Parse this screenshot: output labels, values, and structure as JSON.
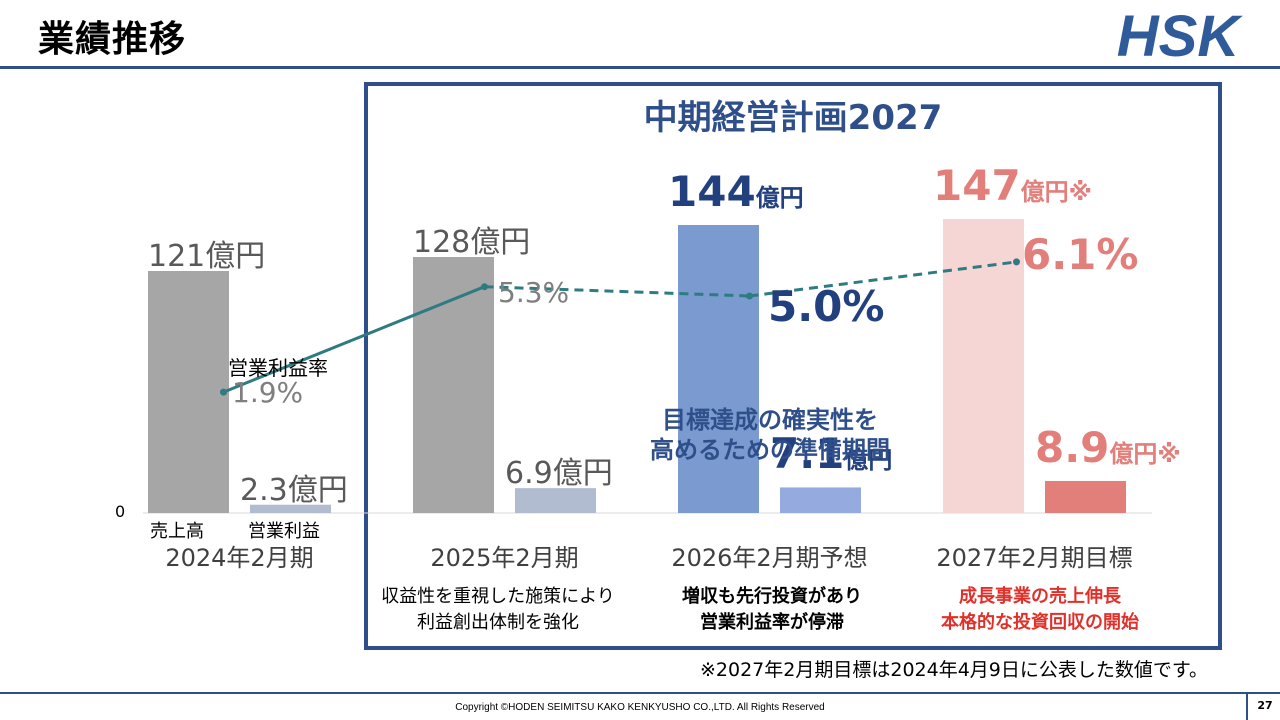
{
  "header": {
    "title": "業績推移",
    "logo_text": "HSK"
  },
  "plan_title": "中期経営計画2027",
  "chart_data": {
    "type": "bar",
    "categories": [
      "2024年2月期",
      "2025年2月期",
      "2026年2月期予想",
      "2027年2月期目標"
    ],
    "series": [
      {
        "name": "売上高",
        "values": [
          121,
          128,
          144,
          147
        ],
        "labels": [
          "121億円",
          "128億円",
          "144億円",
          "147億円※"
        ]
      },
      {
        "name": "営業利益",
        "values": [
          2.3,
          6.9,
          7.1,
          8.9
        ],
        "labels": [
          "2.3億円",
          "6.9億円",
          "7.1億円",
          "8.9億円※"
        ]
      }
    ],
    "line_series": {
      "name": "営業利益率",
      "values": [
        1.9,
        5.3,
        5.0,
        6.1
      ],
      "labels": [
        "1.9%",
        "5.3%",
        "5.0%",
        "6.1%"
      ]
    },
    "y_tick": "0",
    "colors": {
      "sales": [
        "#a6a6a6",
        "#a6a6a6",
        "#7a9ad0",
        "#f6d5d5"
      ],
      "profit": [
        "#b1bcd1",
        "#b1bcd1",
        "#95abdf",
        "#e37f7b"
      ],
      "line": "#2e7c82"
    }
  },
  "annotations": {
    "center": [
      "目標達成の確実性を",
      "高めるための準備期間"
    ],
    "notes": [
      [
        "収益性を重視した施策により",
        "利益創出体制を強化"
      ],
      [
        "増収も先行投資があり",
        "営業利益率が停滞"
      ],
      [
        "成長事業の売上伸長",
        "本格的な投資回収の開始"
      ]
    ]
  },
  "footnote": "※2027年2月期目標は2024年4月9日に公表した数値です。",
  "footer": {
    "copyright": "Copyright ©HODEN SEIMITSU KAKO KENKYUSHO CO.,LTD. All Rights Reserved",
    "page_number": "27"
  }
}
